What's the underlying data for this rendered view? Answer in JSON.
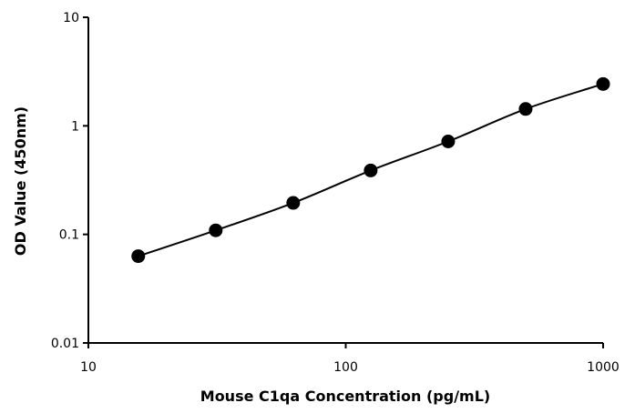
{
  "chart_data": {
    "type": "line",
    "xlabel": "Mouse C1qa Concentration (pg/mL)",
    "ylabel": "OD Value (450nm)",
    "xscale": "log",
    "yscale": "log",
    "xlim": [
      10,
      1000
    ],
    "ylim": [
      0.01,
      10
    ],
    "xticks": [
      10,
      100,
      1000
    ],
    "xtick_labels": [
      "10",
      "100",
      "1000"
    ],
    "yticks": [
      0.01,
      0.1,
      1,
      10
    ],
    "ytick_labels": [
      "0.01",
      "0.1",
      "1",
      "10"
    ],
    "grid": false,
    "legend": "none",
    "series": [
      {
        "x": [
          15.625,
          31.25,
          62.5,
          125,
          250,
          500,
          1000
        ],
        "y": [
          0.063,
          0.109,
          0.195,
          0.388,
          0.718,
          1.43,
          2.43
        ],
        "color": "#000000",
        "marker": "circle"
      }
    ]
  }
}
